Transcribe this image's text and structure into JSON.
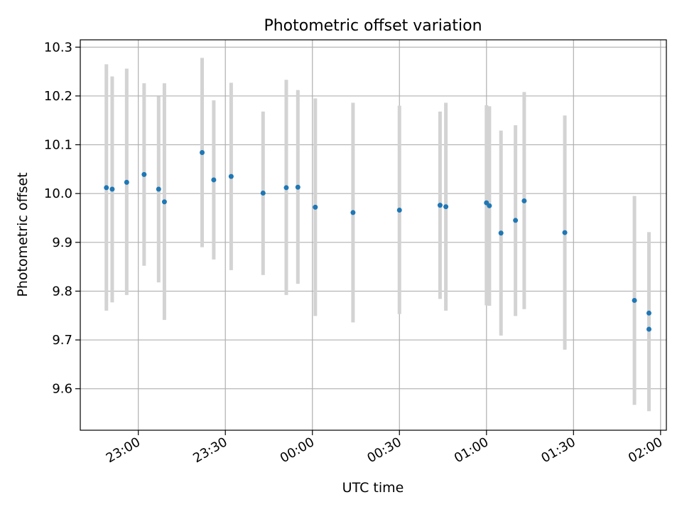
{
  "chart_data": {
    "type": "scatter",
    "title": "Photometric offset variation",
    "xlabel": "UTC time",
    "ylabel": "Photometric offset",
    "x_is_time": true,
    "xlim": [
      "22:40",
      "02:02"
    ],
    "ylim": [
      9.515,
      10.315
    ],
    "xticks": [
      "23:00",
      "23:30",
      "00:00",
      "00:30",
      "01:00",
      "01:30",
      "02:00"
    ],
    "yticks": [
      "9.6",
      "9.7",
      "9.8",
      "9.9",
      "10.0",
      "10.1",
      "10.2",
      "10.3"
    ],
    "grid": true,
    "colors": {
      "point": "#1f77b4",
      "errorbar": "#d3d3d3",
      "grid": "#b0b0b0"
    },
    "points": [
      {
        "t": "22:49",
        "y": 10.012,
        "lo": 9.76,
        "hi": 10.265
      },
      {
        "t": "22:51",
        "y": 10.009,
        "lo": 9.777,
        "hi": 10.24
      },
      {
        "t": "22:56",
        "y": 10.023,
        "lo": 9.792,
        "hi": 10.256
      },
      {
        "t": "23:02",
        "y": 10.039,
        "lo": 9.852,
        "hi": 10.226
      },
      {
        "t": "23:07",
        "y": 10.009,
        "lo": 9.818,
        "hi": 10.199
      },
      {
        "t": "23:09",
        "y": 9.983,
        "lo": 9.741,
        "hi": 10.226
      },
      {
        "t": "23:22",
        "y": 10.084,
        "lo": 9.89,
        "hi": 10.278
      },
      {
        "t": "23:26",
        "y": 10.028,
        "lo": 9.865,
        "hi": 10.191
      },
      {
        "t": "23:32",
        "y": 10.035,
        "lo": 9.843,
        "hi": 10.227
      },
      {
        "t": "23:43",
        "y": 10.001,
        "lo": 9.833,
        "hi": 10.168
      },
      {
        "t": "23:51",
        "y": 10.012,
        "lo": 9.792,
        "hi": 10.233
      },
      {
        "t": "23:55",
        "y": 10.013,
        "lo": 9.815,
        "hi": 10.212
      },
      {
        "t": "00:01",
        "y": 9.972,
        "lo": 9.749,
        "hi": 10.195
      },
      {
        "t": "00:14",
        "y": 9.961,
        "lo": 9.736,
        "hi": 10.186
      },
      {
        "t": "00:30",
        "y": 9.966,
        "lo": 9.753,
        "hi": 10.18
      },
      {
        "t": "00:44",
        "y": 9.976,
        "lo": 9.784,
        "hi": 10.168
      },
      {
        "t": "00:46",
        "y": 9.973,
        "lo": 9.76,
        "hi": 10.186
      },
      {
        "t": "01:00",
        "y": 9.981,
        "lo": 9.771,
        "hi": 10.181
      },
      {
        "t": "01:01",
        "y": 9.975,
        "lo": 9.77,
        "hi": 10.179
      },
      {
        "t": "01:05",
        "y": 9.919,
        "lo": 9.709,
        "hi": 10.129
      },
      {
        "t": "01:10",
        "y": 9.945,
        "lo": 9.749,
        "hi": 10.14
      },
      {
        "t": "01:13",
        "y": 9.985,
        "lo": 9.763,
        "hi": 10.208
      },
      {
        "t": "01:27",
        "y": 9.92,
        "lo": 9.68,
        "hi": 10.16
      },
      {
        "t": "01:51",
        "y": 9.781,
        "lo": 9.567,
        "hi": 9.995
      },
      {
        "t": "01:56",
        "y": 9.755,
        "lo": 9.59,
        "hi": 9.921
      },
      {
        "t": "01:56",
        "y": 9.722,
        "lo": 9.554,
        "hi": 9.89
      }
    ]
  }
}
